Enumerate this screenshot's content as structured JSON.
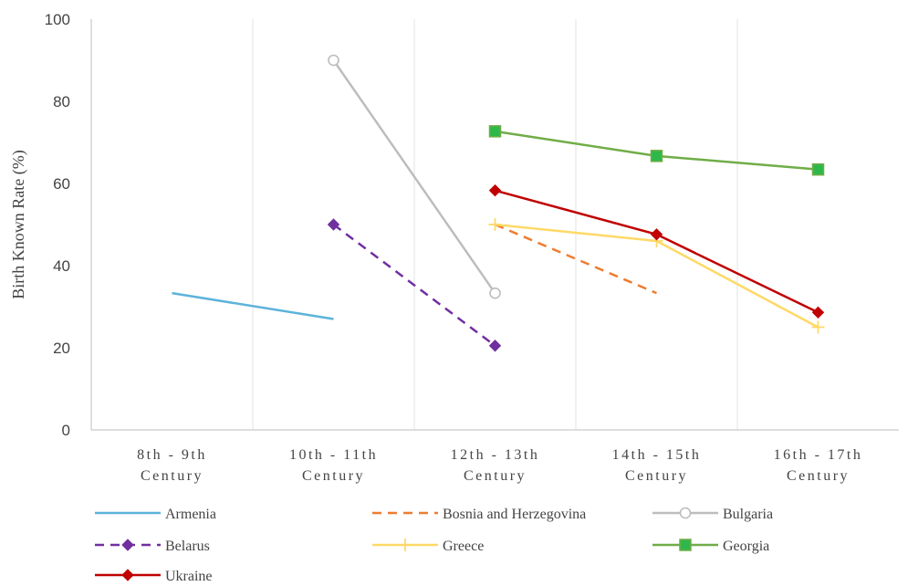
{
  "chart_data": {
    "type": "line",
    "title": "",
    "xlabel": "",
    "ylabel": "Birth Known Rate (%)",
    "ylim": [
      0,
      100
    ],
    "yticks": [
      0,
      20,
      40,
      60,
      80,
      100
    ],
    "grid": "vertical",
    "legend_position": "bottom",
    "categories": [
      [
        "8th - 9th",
        "Century"
      ],
      [
        "10th - 11th",
        "Century"
      ],
      [
        "12th - 13th",
        "Century"
      ],
      [
        "14th - 15th",
        "Century"
      ],
      [
        "16th - 17th",
        "Century"
      ]
    ],
    "series": [
      {
        "name": "Armenia",
        "color": "#5DB3D9",
        "dash": "solid",
        "marker": "none",
        "values": [
          33.3,
          27,
          null,
          null,
          null
        ]
      },
      {
        "name": "Bosnia and Herzegovina",
        "color": "#ED7D31",
        "dash": "dashed",
        "marker": "none",
        "values": [
          null,
          null,
          50,
          33.3,
          null
        ]
      },
      {
        "name": "Bulgaria",
        "color": "#BDBDBD",
        "dash": "solid",
        "marker": "circle-open",
        "values": [
          null,
          90,
          33.3,
          null,
          null
        ]
      },
      {
        "name": "Belarus",
        "color": "#7030A0",
        "dash": "dashed",
        "marker": "diamond",
        "values": [
          null,
          50,
          20.5,
          null,
          null
        ]
      },
      {
        "name": "Greece",
        "color": "#FFD966",
        "dash": "solid",
        "marker": "plus",
        "values": [
          null,
          null,
          50,
          46,
          25
        ]
      },
      {
        "name": "Georgia",
        "color": "#70AD47",
        "dash": "solid",
        "marker": "square",
        "values": [
          null,
          null,
          72.7,
          66.7,
          63.4
        ]
      },
      {
        "name": "Ukraine",
        "color": "#C00000",
        "dash": "solid",
        "marker": "diamond",
        "values": [
          null,
          null,
          58.3,
          47.6,
          28.6
        ]
      }
    ]
  }
}
